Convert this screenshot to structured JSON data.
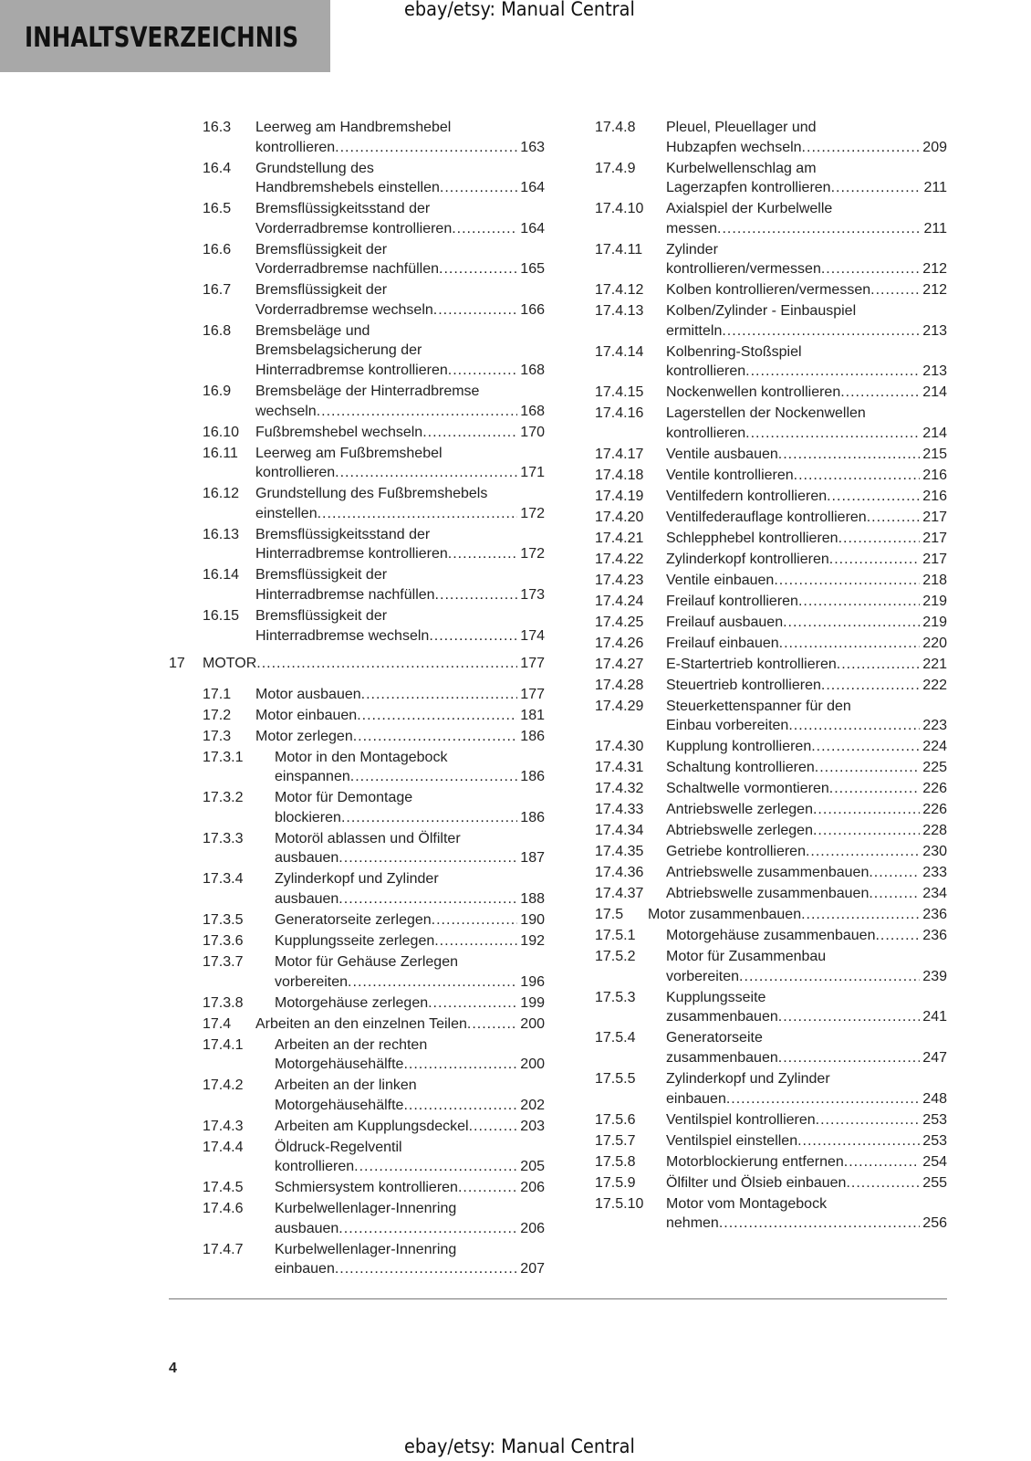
{
  "header": {
    "title": "INHALTSVERZEICHNIS",
    "watermark_top": "ebay/etsy: Manual Central",
    "watermark_bottom": "ebay/etsy: Manual Central",
    "band_color": "#a8a8a8"
  },
  "footer": {
    "page_number": "4"
  },
  "left_column": [
    {
      "num": "16.3",
      "lvl": 2,
      "lines": [
        "Leerweg am Handbremshebel",
        "kontrollieren"
      ],
      "page": "163"
    },
    {
      "num": "16.4",
      "lvl": 2,
      "lines": [
        "Grundstellung des",
        "Handbremshebels einstellen"
      ],
      "page": "164"
    },
    {
      "num": "16.5",
      "lvl": 2,
      "lines": [
        "Bremsflüssigkeitsstand der",
        "Vorderradbremse kontrollieren"
      ],
      "page": "164"
    },
    {
      "num": "16.6",
      "lvl": 2,
      "lines": [
        "Bremsflüssigkeit der",
        "Vorderradbremse nachfüllen"
      ],
      "page": "165"
    },
    {
      "num": "16.7",
      "lvl": 2,
      "lines": [
        "Bremsflüssigkeit der",
        "Vorderradbremse wechseln"
      ],
      "page": "166"
    },
    {
      "num": "16.8",
      "lvl": 2,
      "lines": [
        "Bremsbeläge und",
        "Bremsbelagsicherung der",
        "Hinterradbremse kontrollieren"
      ],
      "page": "168"
    },
    {
      "num": "16.9",
      "lvl": 2,
      "lines": [
        "Bremsbeläge der Hinterradbremse",
        "wechseln"
      ],
      "page": "168"
    },
    {
      "num": "16.10",
      "lvl": 2,
      "lines": [
        "Fußbremshebel wechseln"
      ],
      "page": "170"
    },
    {
      "num": "16.11",
      "lvl": 2,
      "lines": [
        "Leerweg am Fußbremshebel",
        "kontrollieren"
      ],
      "page": "171"
    },
    {
      "num": "16.12",
      "lvl": 2,
      "lines": [
        "Grundstellung des Fußbremshebels",
        "einstellen"
      ],
      "page": "172"
    },
    {
      "num": "16.13",
      "lvl": 2,
      "lines": [
        "Bremsflüssigkeitsstand der",
        "Hinterradbremse kontrollieren"
      ],
      "page": "172"
    },
    {
      "num": "16.14",
      "lvl": 2,
      "lines": [
        "Bremsflüssigkeit der",
        "Hinterradbremse nachfüllen"
      ],
      "page": "173"
    },
    {
      "num": "16.15",
      "lvl": 2,
      "lines": [
        "Bremsflüssigkeit der",
        "Hinterradbremse wechseln"
      ],
      "page": "174"
    },
    {
      "num": "17",
      "lvl": 1,
      "lines": [
        "MOTOR"
      ],
      "page": "177"
    },
    {
      "num": "17.1",
      "lvl": 2,
      "lines": [
        "Motor ausbauen"
      ],
      "page": "177"
    },
    {
      "num": "17.2",
      "lvl": 2,
      "lines": [
        "Motor einbauen"
      ],
      "page": "181"
    },
    {
      "num": "17.3",
      "lvl": 2,
      "lines": [
        "Motor zerlegen"
      ],
      "page": "186"
    },
    {
      "num": "17.3.1",
      "lvl": 3,
      "lines": [
        "Motor in den Montagebock",
        "einspannen"
      ],
      "page": "186"
    },
    {
      "num": "17.3.2",
      "lvl": 3,
      "lines": [
        "Motor für Demontage",
        "blockieren"
      ],
      "page": "186"
    },
    {
      "num": "17.3.3",
      "lvl": 3,
      "lines": [
        "Motoröl ablassen und Ölfilter",
        "ausbauen"
      ],
      "page": "187"
    },
    {
      "num": "17.3.4",
      "lvl": 3,
      "lines": [
        "Zylinderkopf und Zylinder",
        "ausbauen"
      ],
      "page": "188"
    },
    {
      "num": "17.3.5",
      "lvl": 3,
      "lines": [
        "Generatorseite zerlegen"
      ],
      "page": "190"
    },
    {
      "num": "17.3.6",
      "lvl": 3,
      "lines": [
        "Kupplungsseite zerlegen"
      ],
      "page": "192"
    },
    {
      "num": "17.3.7",
      "lvl": 3,
      "lines": [
        "Motor für Gehäuse Zerlegen",
        "vorbereiten"
      ],
      "page": "196"
    },
    {
      "num": "17.3.8",
      "lvl": 3,
      "lines": [
        "Motorgehäuse zerlegen"
      ],
      "page": "199"
    },
    {
      "num": "17.4",
      "lvl": 2,
      "lines": [
        "Arbeiten an den einzelnen Teilen"
      ],
      "page": "200"
    },
    {
      "num": "17.4.1",
      "lvl": 3,
      "lines": [
        "Arbeiten an der rechten",
        "Motorgehäusehälfte"
      ],
      "page": "200"
    },
    {
      "num": "17.4.2",
      "lvl": 3,
      "lines": [
        "Arbeiten an der linken",
        "Motorgehäusehälfte"
      ],
      "page": "202"
    },
    {
      "num": "17.4.3",
      "lvl": 3,
      "lines": [
        "Arbeiten am Kupplungsdeckel"
      ],
      "page": "203"
    },
    {
      "num": "17.4.4",
      "lvl": 3,
      "lines": [
        "Öldruck-Regelventil",
        "kontrollieren"
      ],
      "page": "205"
    },
    {
      "num": "17.4.5",
      "lvl": 3,
      "lines": [
        "Schmiersystem kontrollieren"
      ],
      "page": "206"
    },
    {
      "num": "17.4.6",
      "lvl": 3,
      "lines": [
        "Kurbelwellenlager-Innenring",
        "ausbauen"
      ],
      "page": "206"
    },
    {
      "num": "17.4.7",
      "lvl": 3,
      "lines": [
        "Kurbelwellenlager-Innenring",
        "einbauen"
      ],
      "page": "207"
    }
  ],
  "right_column": [
    {
      "num": "17.4.8",
      "lvl": 3,
      "lines": [
        "Pleuel, Pleuellager und",
        "Hubzapfen wechseln"
      ],
      "page": "209"
    },
    {
      "num": "17.4.9",
      "lvl": 3,
      "lines": [
        "Kurbelwellenschlag am",
        "Lagerzapfen kontrollieren"
      ],
      "page": "211"
    },
    {
      "num": "17.4.10",
      "lvl": 3,
      "lines": [
        "Axialspiel der Kurbelwelle",
        "messen"
      ],
      "page": "211"
    },
    {
      "num": "17.4.11",
      "lvl": 3,
      "lines": [
        "Zylinder",
        "kontrollieren/vermessen"
      ],
      "page": "212"
    },
    {
      "num": "17.4.12",
      "lvl": 3,
      "lines": [
        "Kolben kontrollieren/vermessen"
      ],
      "page": "212"
    },
    {
      "num": "17.4.13",
      "lvl": 3,
      "lines": [
        "Kolben/Zylinder - Einbauspiel",
        "ermitteln"
      ],
      "page": "213"
    },
    {
      "num": "17.4.14",
      "lvl": 3,
      "lines": [
        "Kolbenring-Stoßspiel",
        "kontrollieren"
      ],
      "page": "213"
    },
    {
      "num": "17.4.15",
      "lvl": 3,
      "lines": [
        "Nockenwellen kontrollieren"
      ],
      "page": "214"
    },
    {
      "num": "17.4.16",
      "lvl": 3,
      "lines": [
        "Lagerstellen der Nockenwellen",
        "kontrollieren"
      ],
      "page": "214"
    },
    {
      "num": "17.4.17",
      "lvl": 3,
      "lines": [
        "Ventile ausbauen"
      ],
      "page": "215"
    },
    {
      "num": "17.4.18",
      "lvl": 3,
      "lines": [
        "Ventile kontrollieren"
      ],
      "page": "216"
    },
    {
      "num": "17.4.19",
      "lvl": 3,
      "lines": [
        "Ventilfedern kontrollieren"
      ],
      "page": "216"
    },
    {
      "num": "17.4.20",
      "lvl": 3,
      "lines": [
        "Ventilfederauflage kontrollieren"
      ],
      "page": "217"
    },
    {
      "num": "17.4.21",
      "lvl": 3,
      "lines": [
        "Schlepphebel kontrollieren"
      ],
      "page": "217"
    },
    {
      "num": "17.4.22",
      "lvl": 3,
      "lines": [
        "Zylinderkopf kontrollieren"
      ],
      "page": "217"
    },
    {
      "num": "17.4.23",
      "lvl": 3,
      "lines": [
        "Ventile einbauen"
      ],
      "page": "218"
    },
    {
      "num": "17.4.24",
      "lvl": 3,
      "lines": [
        "Freilauf kontrollieren"
      ],
      "page": "219"
    },
    {
      "num": "17.4.25",
      "lvl": 3,
      "lines": [
        "Freilauf ausbauen"
      ],
      "page": "219"
    },
    {
      "num": "17.4.26",
      "lvl": 3,
      "lines": [
        "Freilauf einbauen"
      ],
      "page": "220"
    },
    {
      "num": "17.4.27",
      "lvl": 3,
      "lines": [
        "E-Startertrieb kontrollieren"
      ],
      "page": "221"
    },
    {
      "num": "17.4.28",
      "lvl": 3,
      "lines": [
        "Steuertrieb kontrollieren"
      ],
      "page": "222"
    },
    {
      "num": "17.4.29",
      "lvl": 3,
      "lines": [
        "Steuerkettenspanner für den",
        "Einbau vorbereiten"
      ],
      "page": "223"
    },
    {
      "num": "17.4.30",
      "lvl": 3,
      "lines": [
        "Kupplung kontrollieren"
      ],
      "page": "224"
    },
    {
      "num": "17.4.31",
      "lvl": 3,
      "lines": [
        "Schaltung kontrollieren"
      ],
      "page": "225"
    },
    {
      "num": "17.4.32",
      "lvl": 3,
      "lines": [
        "Schaltwelle vormontieren"
      ],
      "page": "226"
    },
    {
      "num": "17.4.33",
      "lvl": 3,
      "lines": [
        "Antriebswelle zerlegen"
      ],
      "page": "226"
    },
    {
      "num": "17.4.34",
      "lvl": 3,
      "lines": [
        "Abtriebswelle zerlegen"
      ],
      "page": "228"
    },
    {
      "num": "17.4.35",
      "lvl": 3,
      "lines": [
        "Getriebe kontrollieren"
      ],
      "page": "230"
    },
    {
      "num": "17.4.36",
      "lvl": 3,
      "lines": [
        "Antriebswelle zusammenbauen"
      ],
      "page": "233"
    },
    {
      "num": "17.4.37",
      "lvl": 3,
      "lines": [
        "Abtriebswelle zusammenbauen"
      ],
      "page": "234"
    },
    {
      "num": "17.5",
      "lvl": 2,
      "lines": [
        "Motor zusammenbauen"
      ],
      "page": "236"
    },
    {
      "num": "17.5.1",
      "lvl": 3,
      "lines": [
        "Motorgehäuse zusammenbauen"
      ],
      "page": "236"
    },
    {
      "num": "17.5.2",
      "lvl": 3,
      "lines": [
        "Motor für Zusammenbau",
        "vorbereiten"
      ],
      "page": "239"
    },
    {
      "num": "17.5.3",
      "lvl": 3,
      "lines": [
        "Kupplungsseite",
        "zusammenbauen"
      ],
      "page": "241"
    },
    {
      "num": "17.5.4",
      "lvl": 3,
      "lines": [
        "Generatorseite",
        "zusammenbauen"
      ],
      "page": "247"
    },
    {
      "num": "17.5.5",
      "lvl": 3,
      "lines": [
        "Zylinderkopf und Zylinder",
        "einbauen"
      ],
      "page": "248"
    },
    {
      "num": "17.5.6",
      "lvl": 3,
      "lines": [
        "Ventilspiel kontrollieren"
      ],
      "page": "253"
    },
    {
      "num": "17.5.7",
      "lvl": 3,
      "lines": [
        "Ventilspiel einstellen"
      ],
      "page": "253"
    },
    {
      "num": "17.5.8",
      "lvl": 3,
      "lines": [
        "Motorblockierung entfernen"
      ],
      "page": "254"
    },
    {
      "num": "17.5.9",
      "lvl": 3,
      "lines": [
        "Ölfilter und Ölsieb einbauen"
      ],
      "page": "255"
    },
    {
      "num": "17.5.10",
      "lvl": 3,
      "lines": [
        "Motor vom Montagebock",
        "nehmen"
      ],
      "page": "256"
    }
  ]
}
